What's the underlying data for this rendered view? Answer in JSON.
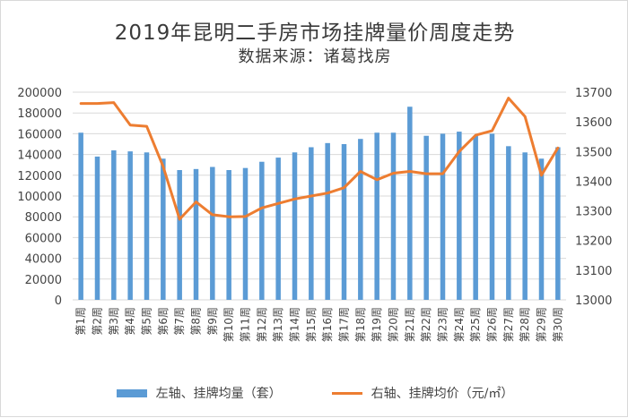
{
  "chart_data": {
    "type": "bar+line",
    "title": "2019年昆明二手房市场挂牌量价周度走势",
    "subtitle": "数据来源：诸葛找房",
    "categories": [
      "第1周",
      "第2周",
      "第3周",
      "第4周",
      "第5周",
      "第6周",
      "第7周",
      "第8周",
      "第9周",
      "第10周",
      "第11周",
      "第12周",
      "第13周",
      "第14周",
      "第15周",
      "第16周",
      "第17周",
      "第18周",
      "第19周",
      "第20周",
      "第21周",
      "第22周",
      "第23周",
      "第24周",
      "第25周",
      "第26周",
      "第27周",
      "第28周",
      "第29周",
      "第30周"
    ],
    "series": [
      {
        "name": "左轴、挂牌均量（套）",
        "type": "bar",
        "axis": "left",
        "color": "#5b9bd5",
        "values": [
          161000,
          138000,
          144000,
          143000,
          142000,
          136000,
          125000,
          126000,
          128000,
          125000,
          127000,
          133000,
          137000,
          142000,
          147000,
          151000,
          150000,
          155000,
          161000,
          161000,
          186000,
          158000,
          160000,
          162000,
          158000,
          160000,
          148000,
          142000,
          136000,
          147000
        ]
      },
      {
        "name": "右轴、挂牌均价（元/㎡）",
        "type": "line",
        "axis": "right",
        "color": "#ed7d31",
        "values": [
          13662,
          13662,
          13665,
          13589,
          13585,
          13450,
          13272,
          13330,
          13287,
          13280,
          13281,
          13310,
          13325,
          13340,
          13350,
          13360,
          13378,
          13433,
          13405,
          13427,
          13433,
          13425,
          13425,
          13500,
          13555,
          13570,
          13680,
          13618,
          13420,
          13512
        ]
      }
    ],
    "y_left": {
      "min": 0,
      "max": 200000,
      "ticks": [
        0,
        20000,
        40000,
        60000,
        80000,
        100000,
        120000,
        140000,
        160000,
        180000,
        200000
      ]
    },
    "y_right": {
      "min": 13000,
      "max": 13700,
      "ticks": [
        13000,
        13100,
        13200,
        13300,
        13400,
        13500,
        13600,
        13700
      ]
    },
    "grid": "horizontal",
    "legend_position": "bottom"
  }
}
